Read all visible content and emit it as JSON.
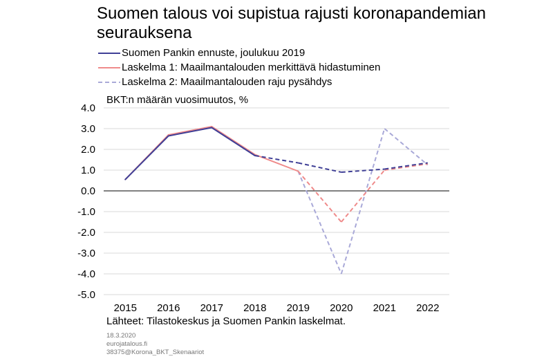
{
  "title": "Suomen talous voi supistua rajusti koronapandemian seurauksena",
  "unit_label": "BKT:n määrän vuosimuutos, %",
  "source": "Lähteet: Tilastokeskus ja Suomen Pankin laskelmat.",
  "footer": {
    "date": "18.3.2020",
    "site": "eurojatalous.fi",
    "code": "38375@Korona_BKT_Skenaariot"
  },
  "colors": {
    "baseline": "#3f3f96",
    "scenario1": "#ef8a8a",
    "scenario2": "#a9a9d8",
    "grid": "#d9d9d9",
    "zero": "#000000"
  },
  "chart_data": {
    "type": "line",
    "categories": [
      "2015",
      "2016",
      "2017",
      "2018",
      "2019",
      "2020",
      "2021",
      "2022"
    ],
    "ylim": [
      -5.0,
      4.0
    ],
    "yticks": [
      "4.0",
      "3.0",
      "2.0",
      "1.0",
      "0.0",
      "-1.0",
      "-2.0",
      "-3.0",
      "-4.0",
      "-5.0"
    ],
    "grid": true,
    "legend_position": "top",
    "series": [
      {
        "name": "Suomen Pankin ennuste, joulukuu 2019",
        "color_key": "baseline",
        "values": [
          0.55,
          2.65,
          3.05,
          1.7,
          1.35,
          0.9,
          1.05,
          1.35
        ],
        "dashed_from_index": 3
      },
      {
        "name": "Laskelma 1: Maailmantalouden merkittävä hidastuminen",
        "color_key": "scenario1",
        "values": [
          0.55,
          2.7,
          3.1,
          1.75,
          0.95,
          -1.5,
          1.0,
          1.3
        ],
        "dashed_from_index": 4
      },
      {
        "name": "Laskelma 2: Maailmantalouden raju pysähdys",
        "color_key": "scenario2",
        "values": [
          null,
          null,
          null,
          null,
          0.95,
          -4.0,
          3.0,
          1.25
        ],
        "dashed_from_index": 4
      }
    ]
  }
}
